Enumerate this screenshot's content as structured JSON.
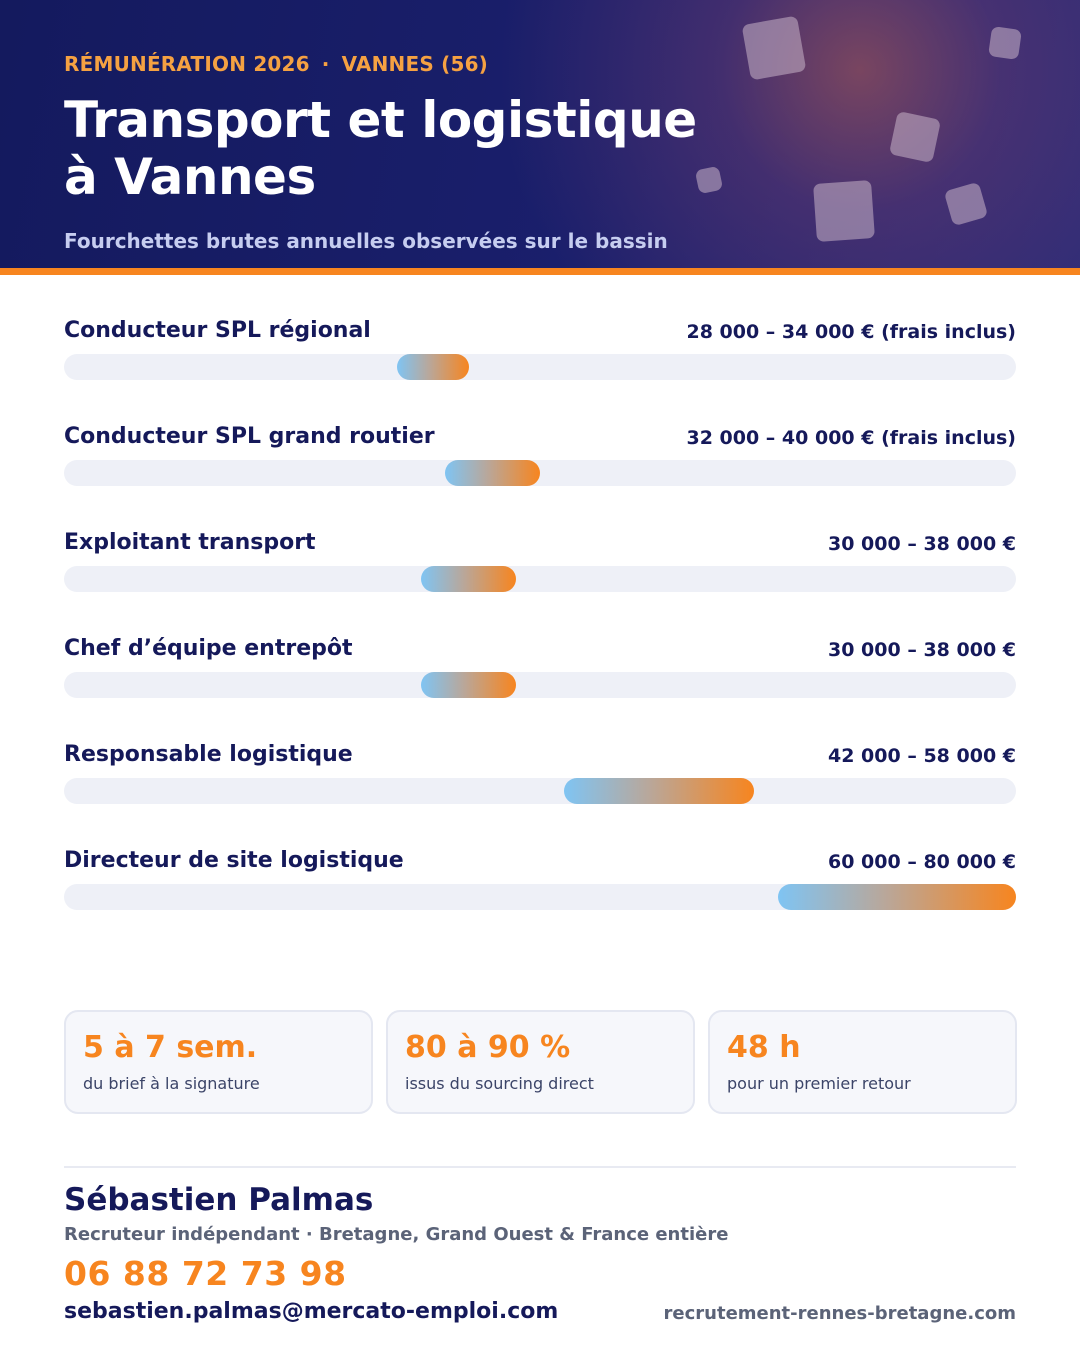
{
  "header": {
    "eyebrow_left": "RÉMUNÉRATION 2026",
    "eyebrow_separator": "·",
    "eyebrow_right": "VANNES (56)",
    "title_line1": "Transport et logistique",
    "title_line2": "à Vannes",
    "subtitle": "Fourchettes brutes annuelles observées sur le bassin"
  },
  "colors": {
    "navy": "#15195a",
    "accent_orange": "#f7851f",
    "bar_gradient_start": "#7fc4f3",
    "bar_gradient_end": "#f7851f",
    "track": "#eef0f7"
  },
  "chart_data": {
    "type": "range",
    "scale": {
      "min": 0,
      "max": 80000,
      "start_offset_fraction": 0
    },
    "rows": [
      {
        "label": "Conducteur SPL régional",
        "range_text": "28 000 – 34 000 € (frais inclus)",
        "min": 28000,
        "max": 34000
      },
      {
        "label": "Conducteur SPL grand routier",
        "range_text": "32 000 – 40 000 € (frais inclus)",
        "min": 32000,
        "max": 40000
      },
      {
        "label": "Exploitant transport",
        "range_text": "30 000 – 38 000 €",
        "min": 30000,
        "max": 38000
      },
      {
        "label": "Chef d’équipe entrepôt",
        "range_text": "30 000 – 38 000 €",
        "min": 30000,
        "max": 38000
      },
      {
        "label": "Responsable logistique",
        "range_text": "42 000 – 58 000 €",
        "min": 42000,
        "max": 58000
      },
      {
        "label": "Directeur de site logistique",
        "range_text": "60 000 – 80 000 €",
        "min": 60000,
        "max": 80000
      }
    ]
  },
  "stats": [
    {
      "value": "5 à 7 sem.",
      "caption": "du brief à la signature"
    },
    {
      "value": "80 à 90 %",
      "caption": "issus du sourcing direct"
    },
    {
      "value": "48 h",
      "caption": "pour un premier retour"
    }
  ],
  "contact": {
    "name": "Sébastien Palmas",
    "role": "Recruteur indépendant · Bretagne, Grand Ouest & France entière",
    "phone": "06 88 72 73 98",
    "email": "sebastien.palmas@mercato-emploi.com",
    "website": "recrutement-rennes-bretagne.com"
  }
}
